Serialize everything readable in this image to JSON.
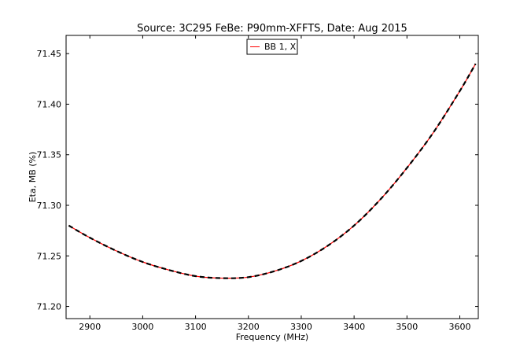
{
  "chart_data": {
    "type": "line",
    "title": "Source: 3C295 FeBe: P90mm-XFFTS, Date: Aug 2015",
    "xlabel": "Frequency (MHz)",
    "ylabel": "Eta, MB (%)",
    "xlim": [
      2855,
      3635
    ],
    "ylim": [
      71.188,
      71.468
    ],
    "xticks": [
      2900,
      3000,
      3100,
      3200,
      3300,
      3400,
      3500,
      3600
    ],
    "yticks": [
      71.2,
      71.25,
      71.3,
      71.35,
      71.4,
      71.45
    ],
    "ytick_labels": [
      "71.20",
      "71.25",
      "71.30",
      "71.35",
      "71.40",
      "71.45"
    ],
    "grid": false,
    "legend": {
      "position": "top-center",
      "entries": [
        "BB 1, X"
      ]
    },
    "series": [
      {
        "name": "BB 1, X",
        "color": "#ff0000",
        "style": "solid",
        "x": [
          2860,
          2900,
          2950,
          3000,
          3050,
          3100,
          3150,
          3200,
          3250,
          3300,
          3350,
          3400,
          3450,
          3500,
          3550,
          3600,
          3630
        ],
        "y": [
          71.28,
          71.268,
          71.255,
          71.244,
          71.236,
          71.23,
          71.228,
          71.229,
          71.235,
          71.245,
          71.26,
          71.28,
          71.306,
          71.337,
          71.372,
          71.413,
          71.44
        ]
      },
      {
        "name": "",
        "color": "#000000",
        "style": "dashed",
        "x": [
          2860,
          2900,
          2950,
          3000,
          3050,
          3100,
          3150,
          3200,
          3250,
          3300,
          3350,
          3400,
          3450,
          3500,
          3550,
          3600,
          3630
        ],
        "y": [
          71.28,
          71.268,
          71.255,
          71.244,
          71.236,
          71.23,
          71.228,
          71.229,
          71.235,
          71.245,
          71.26,
          71.28,
          71.306,
          71.337,
          71.372,
          71.413,
          71.44
        ]
      }
    ]
  }
}
